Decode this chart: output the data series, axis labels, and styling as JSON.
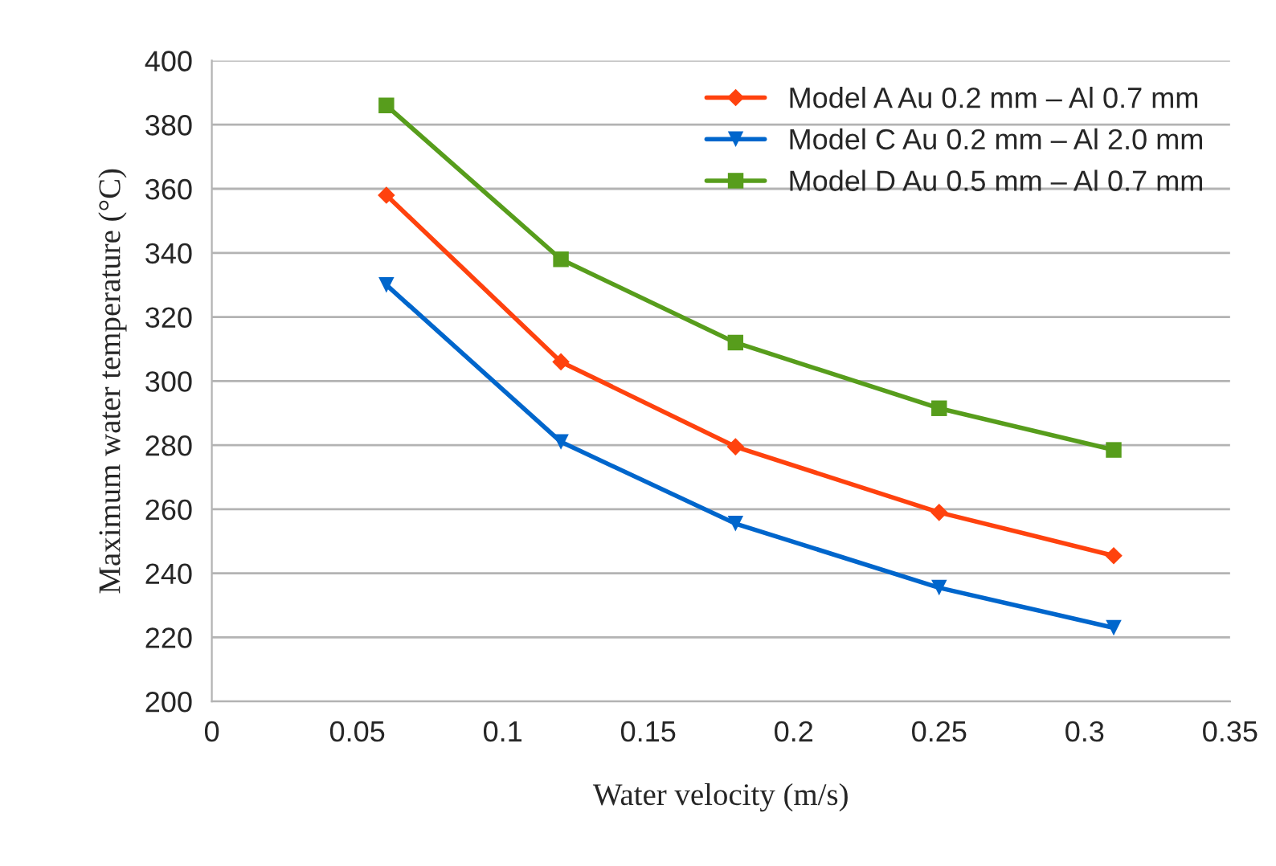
{
  "chart_data": {
    "type": "line",
    "xlabel": "Water velocity (m/s)",
    "ylabel": "Maximum water temperature (°C)",
    "xlim": [
      0,
      0.35
    ],
    "xticks": [
      {
        "value": 0,
        "label": "0"
      },
      0.05,
      0.1,
      0.15,
      0.2,
      0.25,
      0.3,
      0.35
    ],
    "ylim": [
      200,
      400
    ],
    "yticks": [
      200,
      220,
      240,
      260,
      280,
      300,
      320,
      340,
      360,
      380,
      400
    ],
    "grid": "y",
    "legend": "top right",
    "series": [
      {
        "name": "Model A Au 0.2 mm – Al 0.7 mm",
        "color": "#ff420e",
        "marker": "diamond",
        "x": [
          0.06,
          0.12,
          0.18,
          0.25,
          0.31
        ],
        "values": [
          358,
          306,
          279.5,
          259,
          245.5
        ]
      },
      {
        "name": "Model C Au 0.2 mm – Al 2.0 mm",
        "color": "#0066cc",
        "marker": "triangle",
        "x": [
          0.06,
          0.12,
          0.18,
          0.25,
          0.31
        ],
        "values": [
          330,
          281,
          255.5,
          235.5,
          223
        ]
      },
      {
        "name": "Model D Au 0.5 mm – Al 0.7 mm",
        "color": "#579d1c",
        "marker": "square",
        "x": [
          0.06,
          0.12,
          0.18,
          0.25,
          0.31
        ],
        "values": [
          386,
          338,
          312,
          291.5,
          278.5
        ]
      }
    ]
  }
}
